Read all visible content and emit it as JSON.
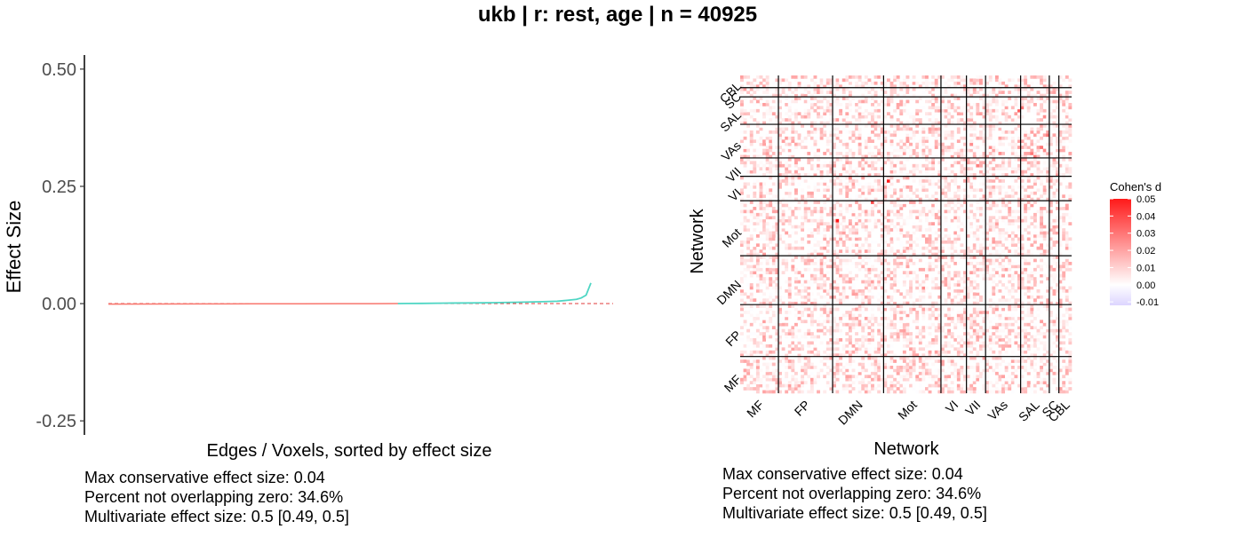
{
  "title": "ukb | r: rest, age | n = 40925",
  "colors": {
    "negative_series": "#f8766d",
    "positive_series": "#4fd6c4",
    "zero_line": "#e03b3b",
    "heat_max": "#ff1a1a",
    "heat_min": "#ddd5ff"
  },
  "left_notes": {
    "line1": "Max conservative effect size: 0.04",
    "line2": "Percent not overlapping zero: 34.6%",
    "line3": "Multivariate effect size: 0.5 [0.49, 0.5]"
  },
  "right_notes": {
    "line1": "Max conservative effect size: 0.04",
    "line2": "Percent not overlapping zero: 34.6%",
    "line3": "Multivariate effect size: 0.5 [0.49, 0.5]"
  },
  "chart_data": [
    {
      "type": "line",
      "xlabel": "Edges / Voxels, sorted by effect size",
      "ylabel": "Effect Size",
      "ylim": [
        -0.28,
        0.53
      ],
      "y_ticks": [
        "0.50",
        "0.25",
        "0.00",
        "-0.25"
      ],
      "grid": false,
      "reference_line_y": 0,
      "x": [
        0,
        0.1,
        0.2,
        0.3,
        0.4,
        0.5,
        0.55,
        0.6,
        0.62,
        0.65,
        0.7,
        0.75,
        0.8,
        0.85,
        0.9,
        0.93,
        0.95,
        0.97,
        0.98,
        0.99,
        1.0
      ],
      "series": [
        {
          "values": [
            -0.001,
            -0.0008,
            -0.0006,
            -0.0004,
            -0.0002,
            -0.0001,
            -5e-05,
            0.0,
            0.0002,
            0.0005,
            0.001,
            0.0015,
            0.002,
            0.003,
            0.004,
            0.005,
            0.007,
            0.009,
            0.012,
            0.018,
            0.044
          ]
        }
      ]
    },
    {
      "type": "heatmap",
      "xlabel": "Network",
      "ylabel": "Network",
      "x_categories": [
        "MF",
        "FP",
        "DMN",
        "Mot",
        "VI",
        "VII",
        "VAs",
        "SAL",
        "SC",
        "CBL"
      ],
      "y_categories": [
        "MF",
        "FP",
        "DMN",
        "Mot",
        "VI",
        "VII",
        "VAs",
        "SAL",
        "SC",
        "CBL"
      ],
      "network_sizes": [
        12,
        17,
        16,
        18,
        8,
        6,
        11,
        9,
        3,
        4
      ],
      "legend": {
        "title": "Cohen's d",
        "ticks": [
          "0.05",
          "0.04",
          "0.03",
          "0.02",
          "0.01",
          "0.00",
          "-0.01"
        ],
        "range": [
          -0.012,
          0.05
        ],
        "position": "right"
      },
      "highlights": [
        {
          "row": 56,
          "col": 30,
          "value": 0.05
        },
        {
          "row": 69,
          "col": 46,
          "value": 0.05
        },
        {
          "row": 62,
          "col": 41,
          "value": 0.04
        },
        {
          "row": 92,
          "col": 87,
          "value": 0.035
        },
        {
          "row": 93,
          "col": 88,
          "value": 0.03
        },
        {
          "row": 84,
          "col": 96,
          "value": 0.03
        },
        {
          "row": 79,
          "col": 95,
          "value": 0.025
        },
        {
          "row": 80,
          "col": 94,
          "value": 0.03
        },
        {
          "row": 78,
          "col": 91,
          "value": 0.03
        },
        {
          "row": 77,
          "col": 92,
          "value": 0.03
        },
        {
          "row": 74,
          "col": 74,
          "value": 0.028
        },
        {
          "row": 81,
          "col": 72,
          "value": 0.025
        },
        {
          "row": 80,
          "col": 78,
          "value": 0.025
        },
        {
          "row": 70,
          "col": 34,
          "value": 0.025
        },
        {
          "row": 34,
          "col": 57,
          "value": 0.025
        },
        {
          "row": 41,
          "col": 52,
          "value": 0.02
        },
        {
          "row": 70,
          "col": 52,
          "value": 0.02
        },
        {
          "row": 78,
          "col": 81,
          "value": 0.025
        },
        {
          "row": 62,
          "col": 36,
          "value": 0.02
        },
        {
          "row": 90,
          "col": 95,
          "value": 0.025
        }
      ]
    }
  ]
}
